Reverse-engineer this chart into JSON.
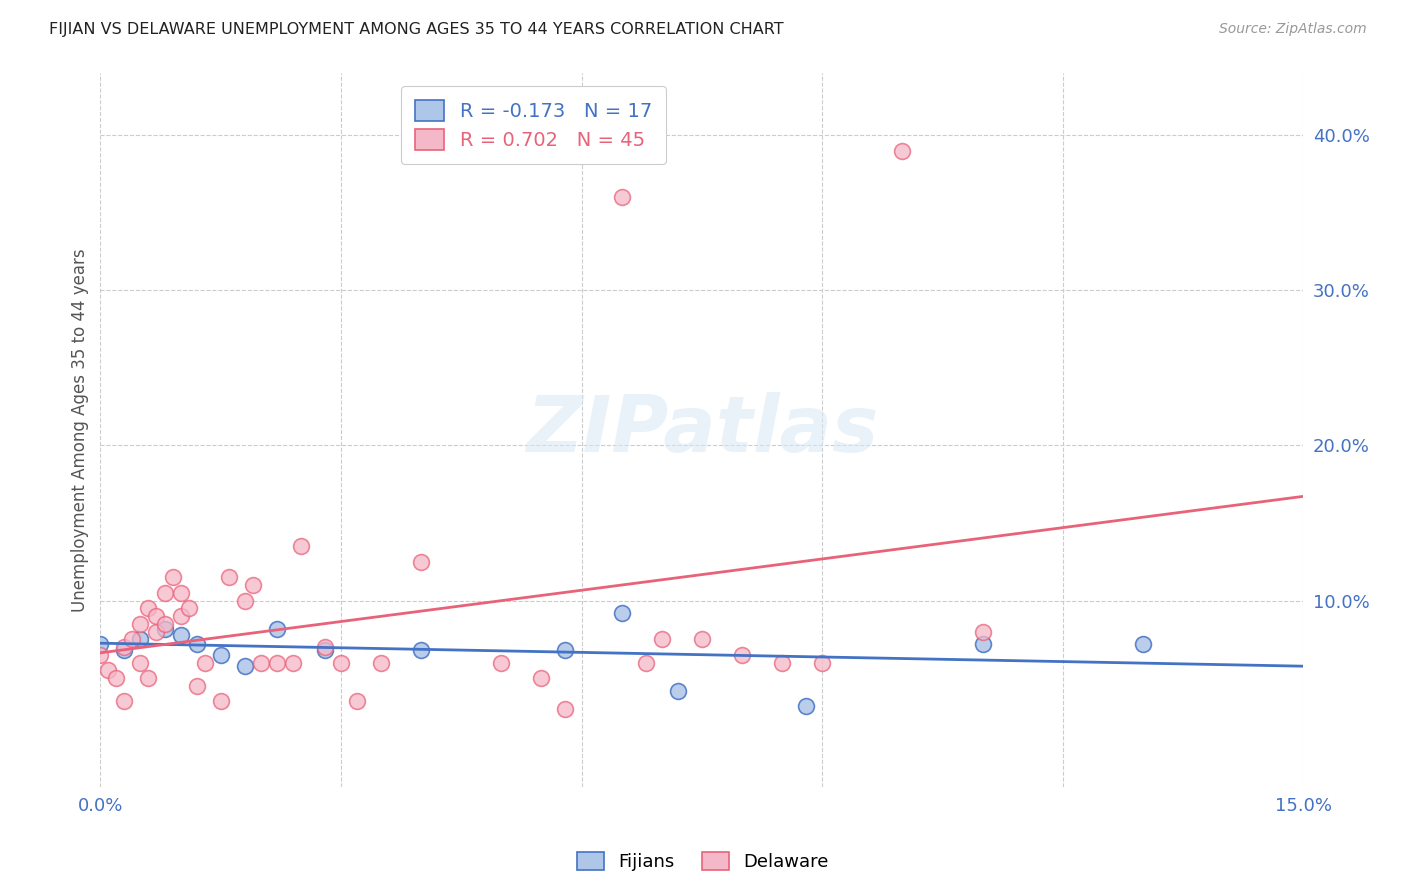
{
  "title": "FIJIAN VS DELAWARE UNEMPLOYMENT AMONG AGES 35 TO 44 YEARS CORRELATION CHART",
  "source": "Source: ZipAtlas.com",
  "ylabel": "Unemployment Among Ages 35 to 44 years",
  "xlim": [
    0.0,
    0.15
  ],
  "ylim": [
    -0.02,
    0.44
  ],
  "xticks": [
    0.0,
    0.03,
    0.06,
    0.09,
    0.12,
    0.15
  ],
  "xtick_labels": [
    "0.0%",
    "",
    "",
    "",
    "",
    "15.0%"
  ],
  "yticks": [
    0.1,
    0.2,
    0.3,
    0.4
  ],
  "ytick_labels": [
    "10.0%",
    "20.0%",
    "30.0%",
    "40.0%"
  ],
  "watermark": "ZIPatlas",
  "fijians_color": "#aec6e8",
  "delaware_color": "#f5b8c8",
  "fijians_line_color": "#4472c4",
  "delaware_line_color": "#e8637a",
  "fijians_R": -0.173,
  "fijians_N": 17,
  "delaware_R": 0.702,
  "delaware_N": 45,
  "fijians_scatter_x": [
    0.0,
    0.003,
    0.005,
    0.008,
    0.01,
    0.012,
    0.015,
    0.018,
    0.022,
    0.028,
    0.04,
    0.058,
    0.065,
    0.072,
    0.088,
    0.11,
    0.13
  ],
  "fijians_scatter_y": [
    0.072,
    0.068,
    0.075,
    0.082,
    0.078,
    0.072,
    0.065,
    0.058,
    0.082,
    0.068,
    0.068,
    0.068,
    0.092,
    0.042,
    0.032,
    0.072,
    0.072
  ],
  "delaware_scatter_x": [
    0.0,
    0.001,
    0.002,
    0.003,
    0.003,
    0.004,
    0.005,
    0.005,
    0.006,
    0.006,
    0.007,
    0.007,
    0.008,
    0.008,
    0.009,
    0.01,
    0.01,
    0.011,
    0.012,
    0.013,
    0.015,
    0.016,
    0.018,
    0.019,
    0.02,
    0.022,
    0.024,
    0.025,
    0.028,
    0.03,
    0.032,
    0.035,
    0.04,
    0.05,
    0.055,
    0.058,
    0.065,
    0.068,
    0.07,
    0.075,
    0.08,
    0.085,
    0.09,
    0.1,
    0.11
  ],
  "delaware_scatter_y": [
    0.065,
    0.055,
    0.05,
    0.07,
    0.035,
    0.075,
    0.06,
    0.085,
    0.05,
    0.095,
    0.08,
    0.09,
    0.085,
    0.105,
    0.115,
    0.09,
    0.105,
    0.095,
    0.045,
    0.06,
    0.035,
    0.115,
    0.1,
    0.11,
    0.06,
    0.06,
    0.06,
    0.135,
    0.07,
    0.06,
    0.035,
    0.06,
    0.125,
    0.06,
    0.05,
    0.03,
    0.36,
    0.06,
    0.075,
    0.075,
    0.065,
    0.06,
    0.06,
    0.39,
    0.08
  ],
  "background_color": "#ffffff",
  "title_color": "#222222",
  "axis_label_color": "#555555",
  "tick_color": "#4472c4",
  "grid_color": "#cccccc"
}
